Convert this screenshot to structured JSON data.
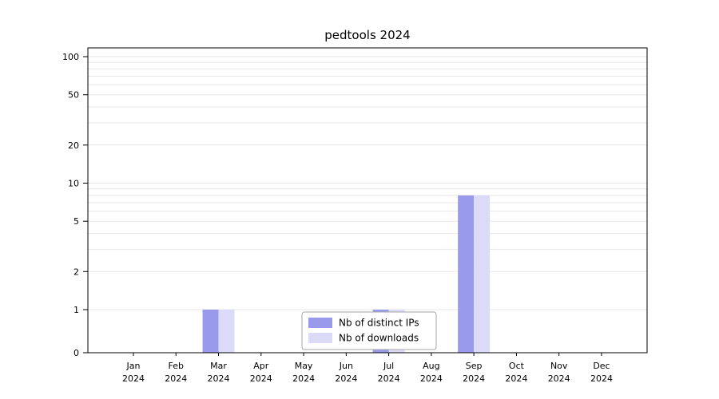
{
  "chart_data": {
    "type": "bar",
    "title": "pedtools 2024",
    "x": {
      "months": [
        "Jan",
        "Feb",
        "Mar",
        "Apr",
        "May",
        "Jun",
        "Jul",
        "Aug",
        "Sep",
        "Oct",
        "Nov",
        "Dec"
      ],
      "year": "2024"
    },
    "yticks": [
      0,
      1,
      2,
      5,
      10,
      20,
      50,
      100
    ],
    "ylim": [
      0,
      100
    ],
    "yscale": "log-like (symlog)",
    "grid": "horizontal log gridlines",
    "legend_position": "bottom-center",
    "series": [
      {
        "name": "Nb of distinct IPs",
        "color": "#9a9aec",
        "values": [
          0,
          0,
          1,
          0,
          0,
          0,
          1,
          0,
          8,
          0,
          0,
          0
        ]
      },
      {
        "name": "Nb of downloads",
        "color": "#dbdbf7",
        "values": [
          0,
          0,
          1,
          0,
          0,
          0,
          1,
          0,
          8,
          0,
          0,
          0
        ]
      }
    ]
  },
  "style": {
    "background": "#ffffff",
    "grid_color": "#e7e7e7",
    "spine_color": "#000000",
    "text_color": "#000000",
    "legend_border": "#a6a6a6",
    "legend_background": "#ffffff"
  }
}
